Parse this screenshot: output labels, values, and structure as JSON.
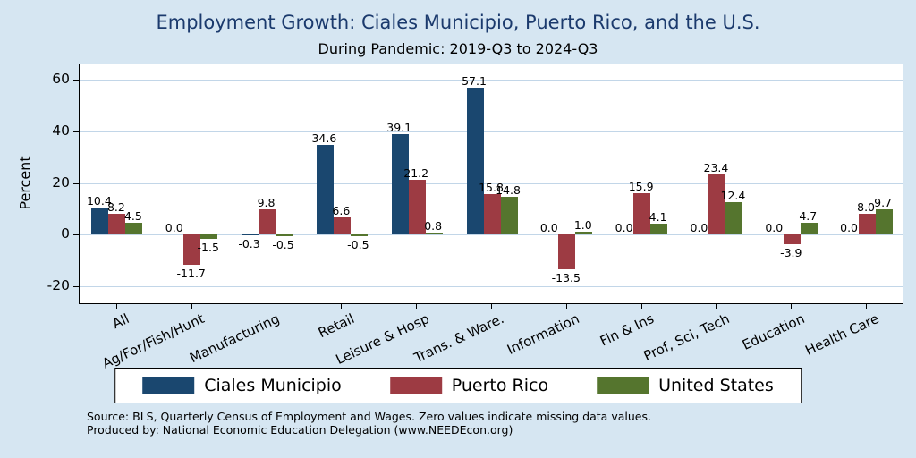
{
  "notes": {
    "line1": "Source: BLS, Quarterly Census of Employment and Wages. Zero values indicate missing data values.",
    "line2": "Produced by: National Economic Education Delegation (www.NEEDEcon.org)"
  },
  "colors": {
    "background": "#d6e6f2",
    "plot_background": "#ffffff",
    "title_text": "#1b3a6d",
    "gridline": "#c2d6e8",
    "axis": "#000000",
    "series_ciales": "#1a476f",
    "series_puerto_rico": "#9d3b43",
    "series_united_states": "#55752e"
  },
  "chart_data": {
    "type": "bar",
    "title": "Employment Growth: Ciales Municipio, Puerto Rico, and the U.S.",
    "subtitle": "During Pandemic: 2019-Q3 to 2024-Q3",
    "xlabel": "",
    "ylabel": "Percent",
    "ylim": [
      -27,
      66
    ],
    "yticks": [
      -20,
      0,
      20,
      40,
      60
    ],
    "grid": true,
    "legend_position": "bottom",
    "value_labels": true,
    "value_label_format": "one-decimal",
    "categories": [
      "All",
      "Ag/For/Fish/Hunt",
      "Manufacturing",
      "Retail",
      "Leisure & Hosp",
      "Trans. & Ware.",
      "Information",
      "Fin & Ins",
      "Prof, Sci, Tech",
      "Education",
      "Health Care"
    ],
    "series": [
      {
        "name": "Ciales Municipio",
        "color": "#1a476f",
        "values": [
          10.4,
          0.0,
          -0.3,
          34.6,
          39.1,
          57.1,
          0.0,
          0.0,
          0.0,
          0.0,
          0.0
        ]
      },
      {
        "name": "Puerto Rico",
        "color": "#9d3b43",
        "values": [
          8.2,
          -11.7,
          9.8,
          6.6,
          21.2,
          15.8,
          -13.5,
          15.9,
          23.4,
          -3.9,
          8.0
        ]
      },
      {
        "name": "United States",
        "color": "#55752e",
        "values": [
          4.5,
          -1.5,
          -0.5,
          -0.5,
          0.8,
          14.8,
          1.0,
          4.1,
          12.4,
          4.7,
          9.7
        ]
      }
    ]
  }
}
